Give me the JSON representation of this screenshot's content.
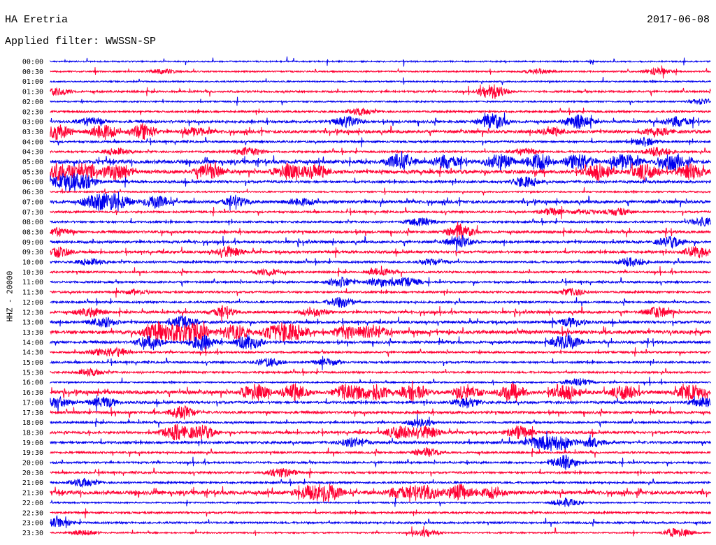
{
  "header": {
    "station": "HA Eretria",
    "date": "2017-06-08",
    "filter_text": "Applied filter: WWSSN-SP"
  },
  "chart_data": {
    "type": "line",
    "title": "HA Eretria",
    "ylabel": "HHZ - 20000",
    "xlabel": "",
    "colors": [
      "#0000ee",
      "#ff0033"
    ],
    "grid": false,
    "categories": [
      "00:00",
      "00:30",
      "01:00",
      "01:30",
      "02:00",
      "02:30",
      "03:00",
      "03:30",
      "04:00",
      "04:30",
      "05:00",
      "05:30",
      "06:00",
      "06:30",
      "07:00",
      "07:30",
      "08:00",
      "08:30",
      "09:00",
      "09:30",
      "10:00",
      "10:30",
      "11:00",
      "11:30",
      "12:00",
      "12:30",
      "13:00",
      "13:30",
      "14:00",
      "14:30",
      "15:00",
      "15:30",
      "16:00",
      "16:30",
      "17:00",
      "17:30",
      "18:00",
      "18:30",
      "19:00",
      "19:30",
      "20:00",
      "20:30",
      "21:00",
      "21:30",
      "22:00",
      "22:30",
      "23:00",
      "23:30"
    ],
    "activity_level": [
      1,
      1,
      1,
      2,
      1,
      2,
      3,
      4,
      2,
      2,
      5,
      5,
      3,
      1,
      4,
      2,
      2,
      3,
      3,
      3,
      2,
      2,
      2,
      2,
      2,
      3,
      3,
      5,
      3,
      2,
      2,
      2,
      1,
      5,
      3,
      3,
      2,
      3,
      3,
      2,
      2,
      2,
      2,
      5,
      1,
      2,
      2,
      1
    ],
    "bursts": [
      [],
      [
        [
          0.17,
          0.3
        ],
        [
          0.74,
          0.3
        ],
        [
          0.92,
          0.4
        ]
      ],
      [],
      [
        [
          0.01,
          0.4
        ],
        [
          0.67,
          0.9
        ]
      ],
      [
        [
          0.99,
          0.4
        ]
      ],
      [
        [
          0.47,
          0.4
        ]
      ],
      [
        [
          0.06,
          0.5
        ],
        [
          0.45,
          0.6
        ],
        [
          0.67,
          0.9
        ],
        [
          0.8,
          0.8
        ],
        [
          0.95,
          0.6
        ]
      ],
      [
        [
          0.01,
          0.9
        ],
        [
          0.08,
          0.9
        ],
        [
          0.14,
          0.9
        ],
        [
          0.22,
          0.5
        ],
        [
          0.76,
          0.4
        ],
        [
          0.92,
          0.4
        ]
      ],
      [
        [
          0.9,
          0.5
        ]
      ],
      [
        [
          0.1,
          0.4
        ],
        [
          0.3,
          0.5
        ],
        [
          0.72,
          0.4
        ],
        [
          0.92,
          0.6
        ]
      ],
      [
        [
          0.53,
          0.9
        ],
        [
          0.6,
          0.8
        ],
        [
          0.68,
          0.9
        ],
        [
          0.74,
          1.0
        ],
        [
          0.8,
          1.0
        ],
        [
          0.87,
          1.0
        ],
        [
          0.94,
          0.9
        ]
      ],
      [
        [
          0.01,
          1.0
        ],
        [
          0.05,
          1.0
        ],
        [
          0.1,
          0.9
        ],
        [
          0.24,
          0.9
        ],
        [
          0.36,
          0.9
        ],
        [
          0.4,
          0.8
        ],
        [
          0.83,
          0.9
        ],
        [
          0.9,
          0.9
        ],
        [
          0.97,
          0.9
        ]
      ],
      [
        [
          0.02,
          1.0
        ],
        [
          0.05,
          0.9
        ],
        [
          0.72,
          0.6
        ]
      ],
      [],
      [
        [
          0.07,
          0.9
        ],
        [
          0.1,
          0.9
        ],
        [
          0.16,
          0.7
        ],
        [
          0.28,
          0.5
        ],
        [
          0.38,
          0.4
        ]
      ],
      [
        [
          0.76,
          0.4
        ],
        [
          0.81,
          0.3
        ],
        [
          0.86,
          0.4
        ]
      ],
      [
        [
          0.56,
          0.5
        ],
        [
          0.99,
          0.5
        ]
      ],
      [
        [
          0.01,
          0.5
        ],
        [
          0.62,
          0.8
        ]
      ],
      [
        [
          0.62,
          0.7
        ],
        [
          0.94,
          0.6
        ]
      ],
      [
        [
          0.01,
          0.6
        ],
        [
          0.27,
          0.6
        ],
        [
          0.98,
          0.7
        ]
      ],
      [
        [
          0.06,
          0.4
        ],
        [
          0.58,
          0.4
        ],
        [
          0.88,
          0.6
        ]
      ],
      [
        [
          0.33,
          0.4
        ],
        [
          0.5,
          0.4
        ]
      ],
      [
        [
          0.44,
          0.6
        ],
        [
          0.5,
          0.6
        ],
        [
          0.54,
          0.5
        ]
      ],
      [
        [
          0.13,
          0.3
        ],
        [
          0.79,
          0.4
        ]
      ],
      [
        [
          0.44,
          0.6
        ]
      ],
      [
        [
          0.06,
          0.5
        ],
        [
          0.26,
          0.5
        ],
        [
          0.4,
          0.5
        ],
        [
          0.92,
          0.6
        ]
      ],
      [
        [
          0.08,
          0.6
        ],
        [
          0.2,
          0.7
        ],
        [
          0.79,
          0.5
        ]
      ],
      [
        [
          0.16,
          1.0
        ],
        [
          0.19,
          1.0
        ],
        [
          0.22,
          1.0
        ],
        [
          0.28,
          0.9
        ],
        [
          0.34,
          0.9
        ],
        [
          0.37,
          0.9
        ],
        [
          0.45,
          0.7
        ],
        [
          0.49,
          0.8
        ]
      ],
      [
        [
          0.15,
          0.7
        ],
        [
          0.23,
          0.9
        ],
        [
          0.3,
          0.9
        ],
        [
          0.78,
          1.0
        ]
      ],
      [
        [
          0.07,
          0.3
        ],
        [
          0.1,
          0.5
        ]
      ],
      [
        [
          0.33,
          0.5
        ],
        [
          0.42,
          0.4
        ]
      ],
      [
        [
          0.06,
          0.4
        ]
      ],
      [
        [
          0.8,
          0.5
        ]
      ],
      [
        [
          0.31,
          1.0
        ],
        [
          0.37,
          0.9
        ],
        [
          0.45,
          1.0
        ],
        [
          0.49,
          0.9
        ],
        [
          0.55,
          0.8
        ],
        [
          0.63,
          0.9
        ],
        [
          0.7,
          0.9
        ],
        [
          0.78,
          0.8
        ],
        [
          0.87,
          0.8
        ],
        [
          0.97,
          1.0
        ]
      ],
      [
        [
          0.01,
          0.6
        ],
        [
          0.08,
          0.6
        ],
        [
          0.63,
          0.6
        ],
        [
          0.99,
          0.6
        ]
      ],
      [
        [
          0.2,
          0.8
        ]
      ],
      [
        [
          0.56,
          0.4
        ]
      ],
      [
        [
          0.19,
          0.9
        ],
        [
          0.23,
          0.8
        ],
        [
          0.53,
          0.8
        ],
        [
          0.57,
          0.7
        ],
        [
          0.71,
          0.7
        ]
      ],
      [
        [
          0.46,
          0.6
        ],
        [
          0.74,
          0.7
        ],
        [
          0.77,
          0.9
        ],
        [
          0.82,
          0.5
        ]
      ],
      [
        [
          0.57,
          0.5
        ]
      ],
      [
        [
          0.78,
          0.9
        ]
      ],
      [
        [
          0.35,
          0.6
        ]
      ],
      [
        [
          0.05,
          0.5
        ]
      ],
      [
        [
          0.39,
          0.7
        ],
        [
          0.42,
          1.0
        ],
        [
          0.53,
          0.7
        ],
        [
          0.57,
          0.8
        ],
        [
          0.62,
          0.9
        ],
        [
          0.67,
          0.6
        ]
      ],
      [
        [
          0.78,
          0.5
        ]
      ],
      [],
      [
        [
          0.01,
          0.5
        ]
      ],
      [
        [
          0.05,
          0.3
        ],
        [
          0.57,
          0.4
        ],
        [
          0.95,
          0.6
        ]
      ]
    ]
  }
}
